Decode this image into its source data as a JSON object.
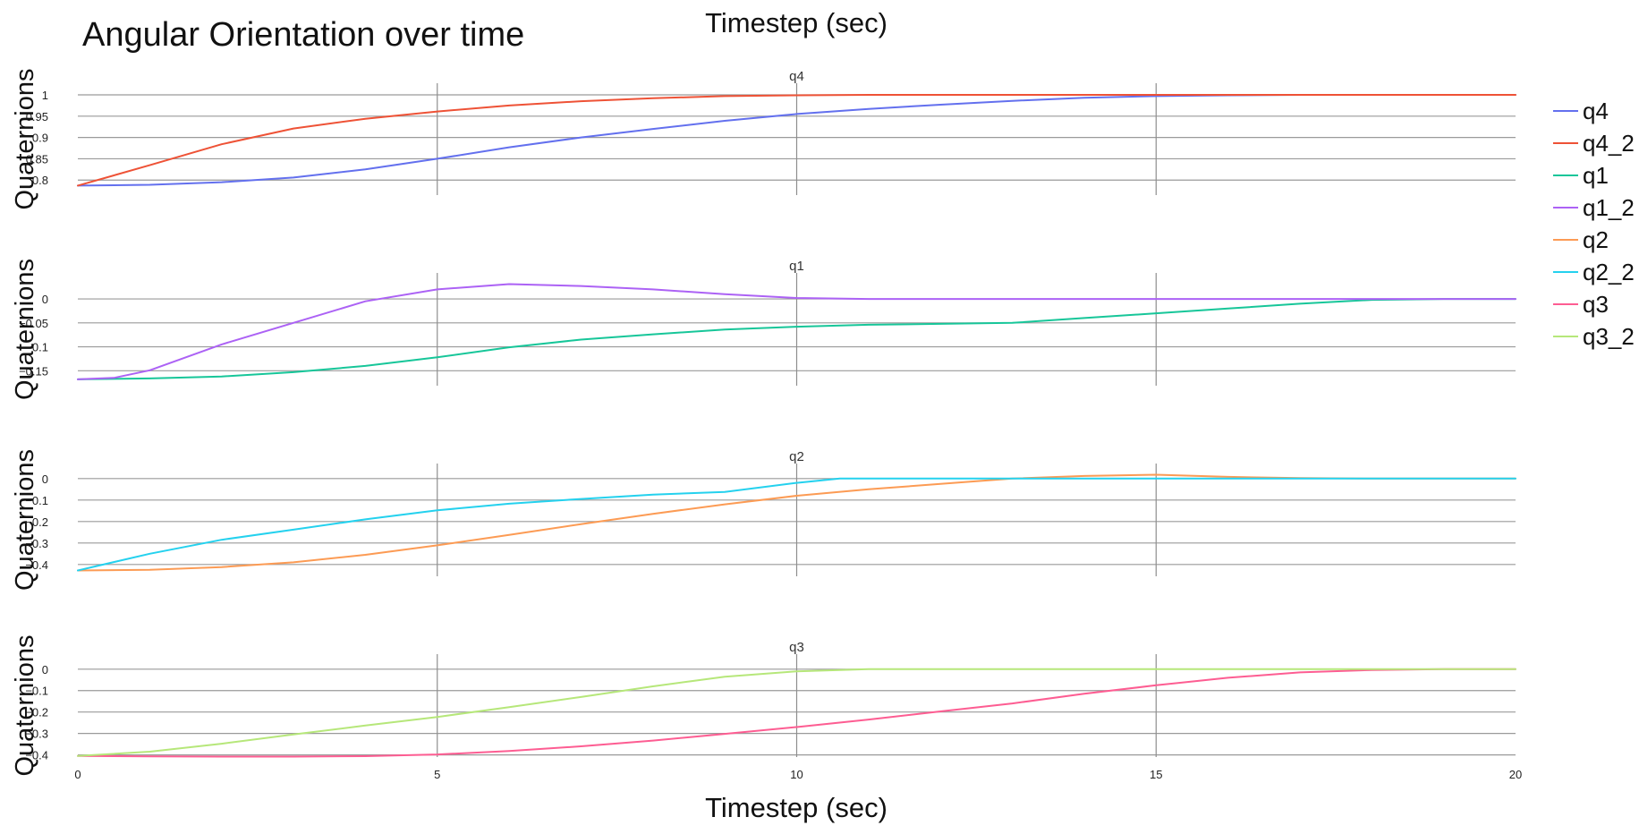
{
  "chart_data": {
    "type": "line",
    "title": "Angular Orientation over time",
    "xlabel_top": "Timestep (sec)",
    "xlabel": "Timestep (sec)",
    "xlim": [
      0,
      20
    ],
    "xticks": [
      0,
      5,
      10,
      15,
      20
    ],
    "x_tick_labels_shown_on": "bottom subplot only",
    "grid": true,
    "legend_position": "right",
    "legend": [
      {
        "name": "q4",
        "color": "#6370ee"
      },
      {
        "name": "q4_2",
        "color": "#ee5236"
      },
      {
        "name": "q1",
        "color": "#17c699"
      },
      {
        "name": "q1_2",
        "color": "#ac62f5"
      },
      {
        "name": "q2",
        "color": "#fc9b54"
      },
      {
        "name": "q2_2",
        "color": "#24d1ee"
      },
      {
        "name": "q3",
        "color": "#fd5d92"
      },
      {
        "name": "q3_2",
        "color": "#b6e77a"
      }
    ],
    "subplots": [
      {
        "title": "q4",
        "ylabel": "Quaternions",
        "ylim": [
          0.79,
          1.0
        ],
        "yticks": [
          0.8,
          0.85,
          0.9,
          0.95,
          1
        ],
        "ytick_labels": [
          "0.8",
          "0.85",
          "0.9",
          "0.95",
          "1"
        ],
        "series": [
          {
            "name": "q4",
            "color": "#6370ee",
            "x": [
              0,
              1,
              2,
              3,
              4,
              5,
              6,
              7,
              8,
              9,
              10,
              11,
              12,
              13,
              14,
              15,
              16,
              17,
              18,
              19,
              20
            ],
            "y": [
              0.787,
              0.789,
              0.795,
              0.806,
              0.825,
              0.85,
              0.877,
              0.9,
              0.92,
              0.939,
              0.955,
              0.967,
              0.977,
              0.986,
              0.993,
              0.997,
              0.999,
              1.0,
              1.0,
              1.0,
              1.0
            ]
          },
          {
            "name": "q4_2",
            "color": "#ee5236",
            "x": [
              0,
              1,
              2,
              3,
              4,
              5,
              6,
              7,
              8,
              9,
              10,
              11,
              12,
              13,
              14,
              15,
              16,
              17,
              18,
              19,
              20
            ],
            "y": [
              0.787,
              0.835,
              0.884,
              0.921,
              0.944,
              0.961,
              0.975,
              0.985,
              0.992,
              0.997,
              0.999,
              1.0,
              1.0,
              1.0,
              1.0,
              1.0,
              1.0,
              1.0,
              1.0,
              1.0,
              1.0
            ]
          }
        ]
      },
      {
        "title": "q1",
        "ylabel": "Quaternions",
        "ylim": [
          -0.17,
          0.03
        ],
        "yticks": [
          -0.15,
          -0.1,
          -0.05,
          0
        ],
        "ytick_labels": [
          "−0.15",
          "−0.1",
          "−0.05",
          "0"
        ],
        "series": [
          {
            "name": "q1",
            "color": "#17c699",
            "x": [
              0,
              1,
              2,
              3,
              4,
              5,
              6,
              7,
              8,
              9,
              10,
              11,
              12,
              13,
              14,
              15,
              16,
              17,
              18,
              19,
              20
            ],
            "y": [
              -0.168,
              -0.166,
              -0.162,
              -0.153,
              -0.14,
              -0.122,
              -0.101,
              -0.085,
              -0.074,
              -0.064,
              -0.058,
              -0.054,
              -0.052,
              -0.05,
              -0.04,
              -0.03,
              -0.02,
              -0.01,
              -0.002,
              0.0,
              0.0
            ]
          },
          {
            "name": "q1_2",
            "color": "#ac62f5",
            "x": [
              0,
              0.5,
              1,
              2,
              3,
              4,
              5,
              6,
              7,
              8,
              9,
              10,
              11,
              12,
              13,
              14,
              15,
              16,
              17,
              18,
              19,
              20
            ],
            "y": [
              -0.168,
              -0.165,
              -0.149,
              -0.095,
              -0.05,
              -0.005,
              0.02,
              0.031,
              0.027,
              0.02,
              0.01,
              0.002,
              0.0,
              0.0,
              0.0,
              0.0,
              0.0,
              0.0,
              0.0,
              0.0,
              0.0,
              0.0
            ]
          }
        ]
      },
      {
        "title": "q2",
        "ylabel": "Quaternions",
        "ylim": [
          -0.43,
          0.02
        ],
        "yticks": [
          -0.4,
          -0.3,
          -0.2,
          -0.1,
          0
        ],
        "ytick_labels": [
          "−0.4",
          "−0.3",
          "−0.2",
          "−0.1",
          "0"
        ],
        "series": [
          {
            "name": "q2",
            "color": "#fc9b54",
            "x": [
              0,
              1,
              2,
              3,
              4,
              5,
              6,
              7,
              8,
              9,
              10,
              11,
              12,
              13,
              14,
              15,
              16,
              17,
              18,
              19,
              20
            ],
            "y": [
              -0.428,
              -0.425,
              -0.412,
              -0.39,
              -0.355,
              -0.311,
              -0.262,
              -0.212,
              -0.164,
              -0.12,
              -0.08,
              -0.05,
              -0.025,
              0.0,
              0.012,
              0.018,
              0.008,
              0.002,
              0.0,
              0.0,
              0.0
            ]
          },
          {
            "name": "q2_2",
            "color": "#24d1ee",
            "x": [
              0,
              1,
              2,
              3,
              4,
              5,
              6,
              7,
              8,
              9,
              10,
              10.6,
              11,
              12,
              13,
              14,
              15,
              16,
              17,
              18,
              19,
              20
            ],
            "y": [
              -0.428,
              -0.35,
              -0.285,
              -0.238,
              -0.19,
              -0.148,
              -0.117,
              -0.095,
              -0.075,
              -0.062,
              -0.02,
              0.0,
              0.0,
              0.0,
              0.0,
              0.0,
              0.0,
              0.0,
              0.0,
              0.0,
              0.0,
              0.0
            ]
          }
        ]
      },
      {
        "title": "q3",
        "ylabel": "Quaternions",
        "ylim": [
          -0.41,
          0.02
        ],
        "yticks": [
          -0.4,
          -0.3,
          -0.2,
          -0.1,
          0
        ],
        "ytick_labels": [
          "−0.4",
          "−0.3",
          "−0.2",
          "−0.1",
          "0"
        ],
        "series": [
          {
            "name": "q3",
            "color": "#fd5d92",
            "x": [
              0,
              1,
              2,
              3,
              4,
              5,
              6,
              7,
              8,
              9,
              10,
              11,
              12,
              13,
              14,
              15,
              16,
              17,
              18,
              19,
              20
            ],
            "y": [
              -0.405,
              -0.407,
              -0.408,
              -0.408,
              -0.406,
              -0.398,
              -0.382,
              -0.36,
              -0.333,
              -0.302,
              -0.27,
              -0.235,
              -0.197,
              -0.16,
              -0.115,
              -0.075,
              -0.04,
              -0.015,
              -0.004,
              0.0,
              0.0
            ]
          },
          {
            "name": "q3_2",
            "color": "#b6e77a",
            "x": [
              0,
              1,
              2,
              3,
              4,
              5,
              6,
              7,
              8,
              9,
              10,
              11,
              12,
              13,
              14,
              15,
              16,
              17,
              18,
              19,
              20
            ],
            "y": [
              -0.405,
              -0.385,
              -0.348,
              -0.305,
              -0.263,
              -0.223,
              -0.177,
              -0.13,
              -0.08,
              -0.035,
              -0.01,
              0.0,
              0.0,
              0.0,
              0.0,
              0.0,
              0.0,
              0.0,
              0.0,
              0.0,
              0.0
            ]
          }
        ]
      }
    ]
  }
}
